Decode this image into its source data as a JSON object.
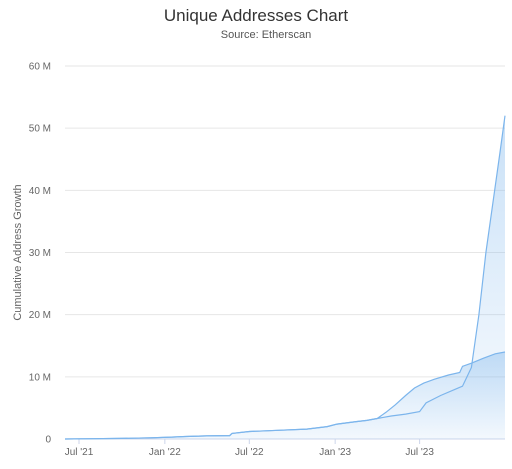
{
  "chart_data": {
    "type": "area",
    "title": "Unique Addresses Chart",
    "subtitle": "Source: Etherscan",
    "xlabel": "",
    "ylabel": "Cumulative Address Growth",
    "ylim": [
      0,
      60
    ],
    "y_unit": "M",
    "y_ticks": [
      "0",
      "10 M",
      "20 M",
      "30 M",
      "40 M",
      "50 M",
      "60 M"
    ],
    "x_range": [
      "2021-06-01",
      "2023-12-31"
    ],
    "x_ticks": [
      {
        "label": "Jul '21",
        "date": "2021-07-01"
      },
      {
        "label": "Jan '22",
        "date": "2022-01-01"
      },
      {
        "label": "Jul '22",
        "date": "2022-07-01"
      },
      {
        "label": "Jan '23",
        "date": "2023-01-01"
      },
      {
        "label": "Jul '23",
        "date": "2023-07-01"
      }
    ],
    "grid": true,
    "legend": "none",
    "colors": {
      "series_line": "#7cb5ec",
      "fill_top": "#7cb5ec",
      "fill_bottom": "#ffffff"
    },
    "series": [
      {
        "x": [
          "2021-06-01",
          "2021-08-01",
          "2021-10-01",
          "2021-12-01",
          "2022-01-15",
          "2022-02-15",
          "2022-04-01",
          "2022-05-20",
          "2022-05-25",
          "2022-07-01",
          "2022-09-01",
          "2022-11-01",
          "2022-12-15",
          "2023-01-05",
          "2023-02-15",
          "2023-03-10",
          "2023-04-01",
          "2023-05-01",
          "2023-06-01",
          "2023-07-01",
          "2023-07-15",
          "2023-08-15",
          "2023-09-15",
          "2023-10-01",
          "2023-10-20",
          "2023-11-05",
          "2023-11-20",
          "2023-12-05",
          "2023-12-20",
          "2023-12-31"
        ],
        "values": [
          0,
          0.05,
          0.1,
          0.2,
          0.3,
          0.4,
          0.5,
          0.55,
          0.9,
          1.2,
          1.4,
          1.6,
          2.0,
          2.4,
          2.8,
          3.0,
          3.3,
          3.7,
          4.0,
          4.4,
          5.8,
          7.0,
          8.0,
          8.5,
          11.5,
          20,
          30,
          38,
          46,
          52
        ]
      },
      {
        "x": [
          "2021-06-01",
          "2021-08-01",
          "2021-10-01",
          "2021-12-01",
          "2022-01-15",
          "2022-02-15",
          "2022-04-01",
          "2022-05-20",
          "2022-05-25",
          "2022-07-01",
          "2022-09-01",
          "2022-11-01",
          "2022-12-15",
          "2023-01-05",
          "2023-02-15",
          "2023-03-10",
          "2023-04-01",
          "2023-04-20",
          "2023-05-10",
          "2023-06-01",
          "2023-06-20",
          "2023-07-10",
          "2023-08-01",
          "2023-09-01",
          "2023-09-25",
          "2023-10-01",
          "2023-10-20",
          "2023-11-15",
          "2023-12-10",
          "2023-12-31"
        ],
        "values": [
          0,
          0.05,
          0.1,
          0.2,
          0.3,
          0.4,
          0.5,
          0.55,
          0.9,
          1.2,
          1.4,
          1.6,
          2.0,
          2.4,
          2.8,
          3.0,
          3.3,
          4.3,
          5.5,
          7.0,
          8.2,
          9.0,
          9.6,
          10.3,
          10.7,
          11.7,
          12.2,
          13.0,
          13.7,
          14.0
        ]
      }
    ]
  }
}
